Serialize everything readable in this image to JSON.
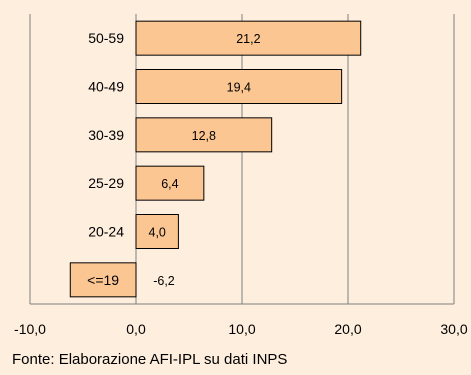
{
  "chart_data": {
    "type": "bar",
    "orientation": "horizontal",
    "categories": [
      "50-59",
      "40-49",
      "30-39",
      "25-29",
      "20-24",
      "<=19"
    ],
    "values": [
      21.2,
      19.4,
      12.8,
      6.4,
      4.0,
      -6.2
    ],
    "value_labels": [
      "21,2",
      "19,4",
      "12,8",
      "6,4",
      "4,0",
      "-6,2"
    ],
    "xlim": [
      -10,
      30
    ],
    "x_ticks": [
      -10,
      0,
      10,
      20,
      30
    ],
    "x_tick_labels": [
      "-10,0",
      "0,0",
      "10,0",
      "20,0",
      "30,0"
    ],
    "grid": true,
    "legend": "none",
    "title": "",
    "xlabel": "",
    "ylabel": ""
  },
  "source": "Fonte: Elaborazione AFI-IPL su dati INPS",
  "colors": {
    "background": "#fdeede",
    "bar_fill": "#fbc692",
    "bar_stroke": "#000000",
    "grid": "#808080"
  }
}
